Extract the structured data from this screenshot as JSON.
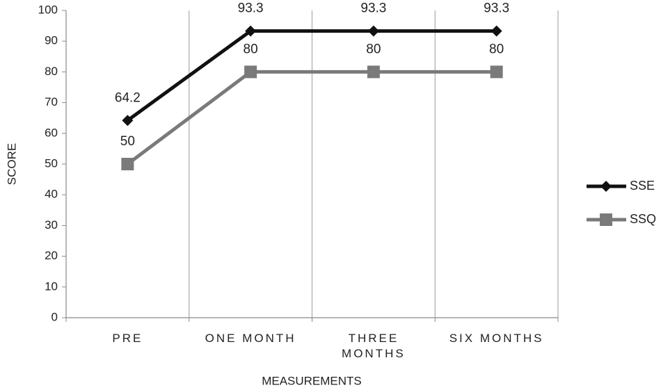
{
  "chart_data": {
    "type": "line",
    "x_label": "MEASUREMENTS",
    "y_label": "SCORE",
    "categories": [
      "PRE",
      "ONE MONTH",
      "THREE MONTHS",
      "SIX MONTHS"
    ],
    "series": [
      {
        "name": "SSE",
        "color": "#111111",
        "marker": "diamond",
        "values": [
          64.2,
          93.3,
          93.3,
          93.3
        ]
      },
      {
        "name": "SSQ",
        "color": "#7a7a7a",
        "marker": "square",
        "values": [
          50,
          80,
          80,
          80
        ]
      }
    ],
    "ylim": [
      0,
      100
    ],
    "yticks": [
      0,
      10,
      20,
      30,
      40,
      50,
      60,
      70,
      80,
      90,
      100
    ],
    "legend": "right",
    "data_labels": true
  }
}
